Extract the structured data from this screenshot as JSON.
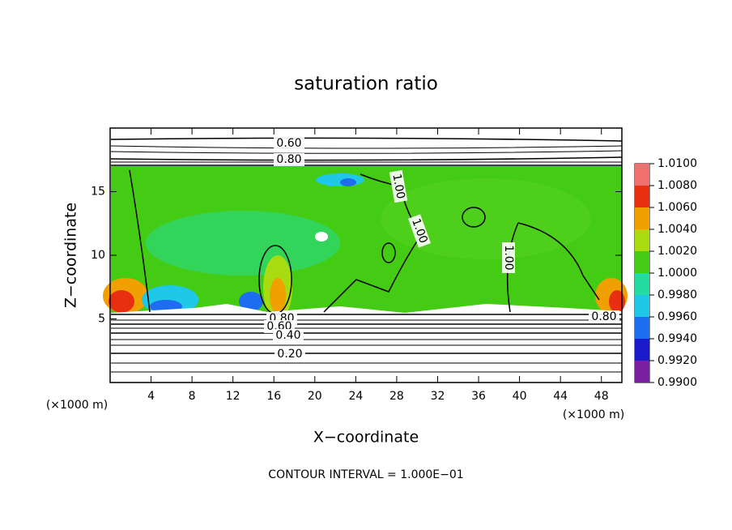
{
  "chart_data": {
    "type": "contour",
    "title": "saturation ratio",
    "x_label": "X−coordinate",
    "y_label": "Z−coordinate",
    "x_unit_label": "(×1000 m)",
    "y_unit_label": "(×1000 m)",
    "annotation": "CONTOUR INTERVAL = 1.000E−01",
    "xlim": [
      0,
      50
    ],
    "ylim": [
      0,
      20
    ],
    "xticks": [
      4,
      8,
      12,
      16,
      20,
      24,
      28,
      32,
      36,
      40,
      44,
      48
    ],
    "yticks": [
      5,
      10,
      15
    ],
    "colorbar": {
      "ticks": [
        {
          "value": 0.99,
          "label": "0.9900"
        },
        {
          "value": 0.992,
          "label": "0.9920"
        },
        {
          "value": 0.994,
          "label": "0.9940"
        },
        {
          "value": 0.996,
          "label": "0.9960"
        },
        {
          "value": 0.998,
          "label": "0.9980"
        },
        {
          "value": 1.0,
          "label": "1.0000"
        },
        {
          "value": 1.002,
          "label": "1.0020"
        },
        {
          "value": 1.004,
          "label": "1.0040"
        },
        {
          "value": 1.006,
          "label": "1.0060"
        },
        {
          "value": 1.008,
          "label": "1.0080"
        },
        {
          "value": 1.01,
          "label": "1.0100"
        }
      ],
      "colors": [
        "#7a1fa0",
        "#1a1ac8",
        "#1e6cf0",
        "#1ec8e6",
        "#22dca0",
        "#44cc14",
        "#a8dc10",
        "#f0a000",
        "#e83010",
        "#f07070"
      ]
    },
    "contour_labels": [
      "0.60",
      "0.80",
      "1.00",
      "1.00",
      "1.00",
      "0.80",
      "0.60",
      "0.40",
      "0.20",
      "0.80"
    ]
  }
}
